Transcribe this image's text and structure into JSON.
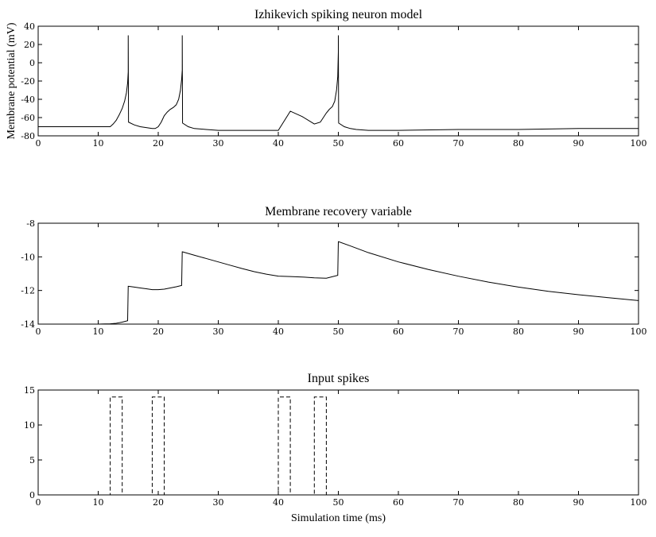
{
  "chart_data": [
    {
      "type": "line",
      "title": "Izhikevich spiking neuron model",
      "xlabel": "",
      "ylabel": "Membrane potential (mV)",
      "xlim": [
        0,
        100
      ],
      "ylim": [
        -80,
        40
      ],
      "xticks": [
        0,
        10,
        20,
        30,
        40,
        50,
        60,
        70,
        80,
        90,
        100
      ],
      "yticks": [
        -80,
        -60,
        -40,
        -20,
        0,
        20,
        40
      ],
      "grid": false,
      "series": [
        {
          "style": "solid",
          "color": "#000000",
          "x": [
            0,
            12,
            12.5,
            13,
            13.5,
            14,
            14.4,
            14.7,
            14.9,
            15,
            15,
            15.05,
            16,
            17,
            18,
            19,
            19.5,
            20,
            20.5,
            21,
            21.5,
            22,
            22.5,
            23,
            23.4,
            23.7,
            23.9,
            24,
            24,
            24.05,
            25,
            26,
            28,
            30,
            35,
            40,
            42,
            44,
            46,
            47,
            48,
            48.5,
            49,
            49.4,
            49.7,
            49.9,
            50,
            50,
            50.05,
            51,
            52,
            53,
            55,
            60,
            70,
            80,
            90,
            100
          ],
          "y": [
            -70,
            -70,
            -67,
            -63,
            -57,
            -50,
            -42,
            -33,
            -22,
            -10,
            30,
            -65,
            -68,
            -70,
            -71,
            -72,
            -72,
            -70,
            -65,
            -58,
            -54,
            -51,
            -49,
            -46,
            -40,
            -30,
            -18,
            -8,
            30,
            -66,
            -70,
            -72,
            -73,
            -74,
            -74,
            -74,
            -53,
            -59,
            -67,
            -65,
            -55,
            -51,
            -48,
            -42,
            -30,
            -15,
            12,
            30,
            -66,
            -70,
            -72,
            -73,
            -74,
            -74,
            -73,
            -73,
            -72,
            -72
          ]
        }
      ]
    },
    {
      "type": "line",
      "title": "Membrane recovery variable",
      "xlabel": "",
      "ylabel": "",
      "xlim": [
        0,
        100
      ],
      "ylim": [
        -14,
        -8
      ],
      "xticks": [
        0,
        10,
        20,
        30,
        40,
        50,
        60,
        70,
        80,
        90,
        100
      ],
      "yticks": [
        -14,
        -12,
        -10,
        -8
      ],
      "grid": false,
      "series": [
        {
          "style": "solid",
          "color": "#000000",
          "x": [
            0,
            10,
            12,
            13,
            14,
            14.9,
            15,
            15.05,
            16,
            17,
            18,
            19,
            20,
            21,
            22,
            23,
            23.9,
            24,
            24.05,
            26,
            28,
            30,
            32,
            34,
            36,
            38,
            40,
            42,
            44,
            46,
            48,
            49.9,
            50,
            50.05,
            52,
            55,
            60,
            65,
            70,
            75,
            80,
            85,
            90,
            95,
            100
          ],
          "y": [
            -14,
            -14,
            -13.98,
            -13.95,
            -13.88,
            -13.8,
            -11.75,
            -11.75,
            -11.8,
            -11.85,
            -11.9,
            -11.95,
            -11.95,
            -11.92,
            -11.85,
            -11.78,
            -11.7,
            -9.7,
            -9.7,
            -9.9,
            -10.1,
            -10.3,
            -10.5,
            -10.7,
            -10.88,
            -11.03,
            -11.15,
            -11.17,
            -11.2,
            -11.25,
            -11.27,
            -11.1,
            -9.1,
            -9.1,
            -9.35,
            -9.75,
            -10.3,
            -10.75,
            -11.15,
            -11.5,
            -11.8,
            -12.05,
            -12.25,
            -12.43,
            -12.6
          ]
        }
      ]
    },
    {
      "type": "line",
      "title": "Input spikes",
      "xlabel": "Simulation time (ms)",
      "ylabel": "",
      "xlim": [
        0,
        100
      ],
      "ylim": [
        0,
        15
      ],
      "xticks": [
        0,
        10,
        20,
        30,
        40,
        50,
        60,
        70,
        80,
        90,
        100
      ],
      "yticks": [
        0,
        5,
        10,
        15
      ],
      "grid": false,
      "series": [
        {
          "style": "dashed",
          "color": "#000000",
          "x": [
            0,
            12,
            12,
            14,
            14,
            19,
            19,
            21,
            21,
            40,
            40,
            42,
            42,
            46,
            46,
            48,
            48,
            100
          ],
          "y": [
            0,
            0,
            14,
            14,
            0,
            0,
            14,
            14,
            0,
            0,
            14,
            14,
            0,
            0,
            14,
            14,
            0,
            0
          ]
        }
      ]
    }
  ]
}
